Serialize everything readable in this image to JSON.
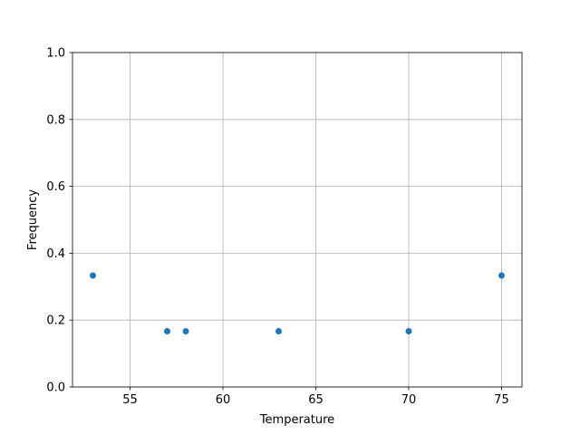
{
  "chart_data": {
    "type": "scatter",
    "title": "",
    "xlabel": "Temperature",
    "ylabel": "Frequency",
    "x": [
      53,
      57,
      58,
      63,
      70,
      75
    ],
    "y": [
      0.3333,
      0.1667,
      0.1667,
      0.1667,
      0.1667,
      0.3333
    ],
    "xlim": [
      51.9,
      76.1
    ],
    "ylim": [
      0.0,
      1.0
    ],
    "xticks": [
      "55",
      "60",
      "65",
      "70",
      "75"
    ],
    "yticks": [
      "0.0",
      "0.2",
      "0.4",
      "0.6",
      "0.8",
      "1.0"
    ],
    "grid": true,
    "marker_color": "#1f77b4"
  }
}
